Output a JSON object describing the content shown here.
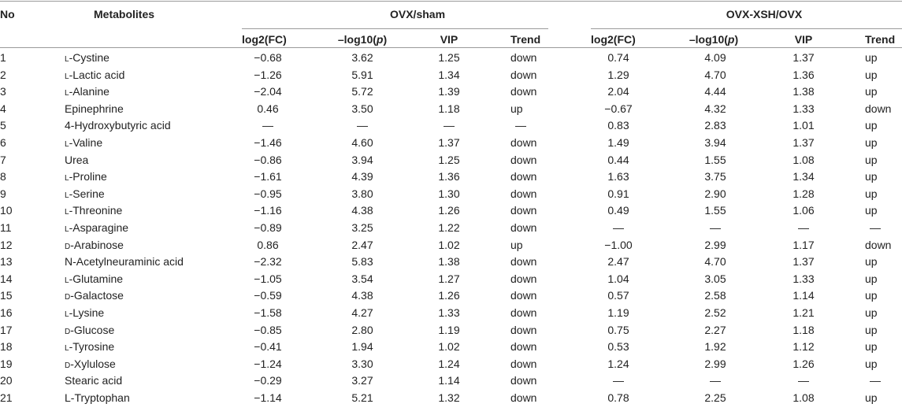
{
  "headers": {
    "no": "No",
    "metabolites": "Metabolites",
    "group1": "OVX/sham",
    "group2": "OVX-XSH/OVX",
    "log2fc": "log2(FC)",
    "neglog10p_pre": "–log10(",
    "neglog10p_p": "p",
    "neglog10p_post": ")",
    "vip": "VIP",
    "trend": "Trend"
  },
  "rows": [
    {
      "no": "1",
      "prefix": "l",
      "name": "-Cystine",
      "g1": {
        "fc": "−0.68",
        "p": "3.62",
        "vip": "1.25",
        "trend": "down"
      },
      "g2": {
        "fc": "0.74",
        "p": "4.09",
        "vip": "1.37",
        "trend": "up"
      }
    },
    {
      "no": "2",
      "prefix": "l",
      "name": "-Lactic acid",
      "g1": {
        "fc": "−1.26",
        "p": "5.91",
        "vip": "1.34",
        "trend": "down"
      },
      "g2": {
        "fc": "1.29",
        "p": "4.70",
        "vip": "1.36",
        "trend": "up"
      }
    },
    {
      "no": "3",
      "prefix": "l",
      "name": "-Alanine",
      "g1": {
        "fc": "−2.04",
        "p": "5.72",
        "vip": "1.39",
        "trend": "down"
      },
      "g2": {
        "fc": "2.04",
        "p": "4.44",
        "vip": "1.38",
        "trend": "up"
      }
    },
    {
      "no": "4",
      "prefix": "",
      "name": "Epinephrine",
      "g1": {
        "fc": "0.46",
        "p": "3.50",
        "vip": "1.18",
        "trend": "up"
      },
      "g2": {
        "fc": "−0.67",
        "p": "4.32",
        "vip": "1.33",
        "trend": "down"
      }
    },
    {
      "no": "5",
      "prefix": "",
      "name": "4-Hydroxybutyric acid",
      "g1": {
        "fc": "—",
        "p": "—",
        "vip": "—",
        "trend": "—"
      },
      "g2": {
        "fc": "0.83",
        "p": "2.83",
        "vip": "1.01",
        "trend": "up"
      }
    },
    {
      "no": "6",
      "prefix": "l",
      "name": "-Valine",
      "g1": {
        "fc": "−1.46",
        "p": "4.60",
        "vip": "1.37",
        "trend": "down"
      },
      "g2": {
        "fc": "1.49",
        "p": "3.94",
        "vip": "1.37",
        "trend": "up"
      }
    },
    {
      "no": "7",
      "prefix": "",
      "name": "Urea",
      "g1": {
        "fc": "−0.86",
        "p": "3.94",
        "vip": "1.25",
        "trend": "down"
      },
      "g2": {
        "fc": "0.44",
        "p": "1.55",
        "vip": "1.08",
        "trend": "up"
      }
    },
    {
      "no": "8",
      "prefix": "l",
      "name": "-Proline",
      "g1": {
        "fc": "−1.61",
        "p": "4.39",
        "vip": "1.36",
        "trend": "down"
      },
      "g2": {
        "fc": "1.63",
        "p": "3.75",
        "vip": "1.34",
        "trend": "up"
      }
    },
    {
      "no": "9",
      "prefix": "l",
      "name": "-Serine",
      "g1": {
        "fc": "−0.95",
        "p": "3.80",
        "vip": "1.30",
        "trend": "down"
      },
      "g2": {
        "fc": "0.91",
        "p": "2.90",
        "vip": "1.28",
        "trend": "up"
      }
    },
    {
      "no": "10",
      "prefix": "l",
      "name": "-Threonine",
      "g1": {
        "fc": "−1.16",
        "p": "4.38",
        "vip": "1.26",
        "trend": "down"
      },
      "g2": {
        "fc": "0.49",
        "p": "1.55",
        "vip": "1.06",
        "trend": "up"
      }
    },
    {
      "no": "11",
      "prefix": "l",
      "name": "-Asparagine",
      "g1": {
        "fc": "−0.89",
        "p": "3.25",
        "vip": "1.22",
        "trend": "down"
      },
      "g2": {
        "fc": "—",
        "p": "—",
        "vip": "—",
        "trend": "—"
      }
    },
    {
      "no": "12",
      "prefix": "d",
      "name": "-Arabinose",
      "g1": {
        "fc": "0.86",
        "p": "2.47",
        "vip": "1.02",
        "trend": "up"
      },
      "g2": {
        "fc": "−1.00",
        "p": "2.99",
        "vip": "1.17",
        "trend": "down"
      }
    },
    {
      "no": "13",
      "prefix": "",
      "name": "N-Acetylneuraminic acid",
      "g1": {
        "fc": "−2.32",
        "p": "5.83",
        "vip": "1.38",
        "trend": "down"
      },
      "g2": {
        "fc": "2.47",
        "p": "4.70",
        "vip": "1.37",
        "trend": "up"
      }
    },
    {
      "no": "14",
      "prefix": "l",
      "name": "-Glutamine",
      "g1": {
        "fc": "−1.05",
        "p": "3.54",
        "vip": "1.27",
        "trend": "down"
      },
      "g2": {
        "fc": "1.04",
        "p": "3.05",
        "vip": "1.33",
        "trend": "up"
      }
    },
    {
      "no": "15",
      "prefix": "d",
      "name": "-Galactose",
      "g1": {
        "fc": "−0.59",
        "p": "4.38",
        "vip": "1.26",
        "trend": "down"
      },
      "g2": {
        "fc": "0.57",
        "p": "2.58",
        "vip": "1.14",
        "trend": "up"
      }
    },
    {
      "no": "16",
      "prefix": "l",
      "name": "-Lysine",
      "g1": {
        "fc": "−1.58",
        "p": "4.27",
        "vip": "1.33",
        "trend": "down"
      },
      "g2": {
        "fc": "1.19",
        "p": "2.52",
        "vip": "1.21",
        "trend": "up"
      }
    },
    {
      "no": "17",
      "prefix": "d",
      "name": "-Glucose",
      "g1": {
        "fc": "−0.85",
        "p": "2.80",
        "vip": "1.19",
        "trend": "down"
      },
      "g2": {
        "fc": "0.75",
        "p": "2.27",
        "vip": "1.18",
        "trend": "up"
      }
    },
    {
      "no": "18",
      "prefix": "l",
      "name": "-Tyrosine",
      "g1": {
        "fc": "−0.41",
        "p": "1.94",
        "vip": "1.02",
        "trend": "down"
      },
      "g2": {
        "fc": "0.53",
        "p": "1.92",
        "vip": "1.12",
        "trend": "up"
      }
    },
    {
      "no": "19",
      "prefix": "d",
      "name": "-Xylulose",
      "g1": {
        "fc": "−1.24",
        "p": "3.30",
        "vip": "1.24",
        "trend": "down"
      },
      "g2": {
        "fc": "1.24",
        "p": "2.99",
        "vip": "1.26",
        "trend": "up"
      }
    },
    {
      "no": "20",
      "prefix": "",
      "name": "Stearic acid",
      "g1": {
        "fc": "−0.29",
        "p": "3.27",
        "vip": "1.14",
        "trend": "down"
      },
      "g2": {
        "fc": "—",
        "p": "—",
        "vip": "—",
        "trend": "—"
      }
    },
    {
      "no": "21",
      "prefix": "",
      "name": "L-Tryptophan",
      "g1": {
        "fc": "−1.14",
        "p": "5.21",
        "vip": "1.32",
        "trend": "down"
      },
      "g2": {
        "fc": "0.78",
        "p": "2.25",
        "vip": "1.08",
        "trend": "up"
      }
    }
  ]
}
